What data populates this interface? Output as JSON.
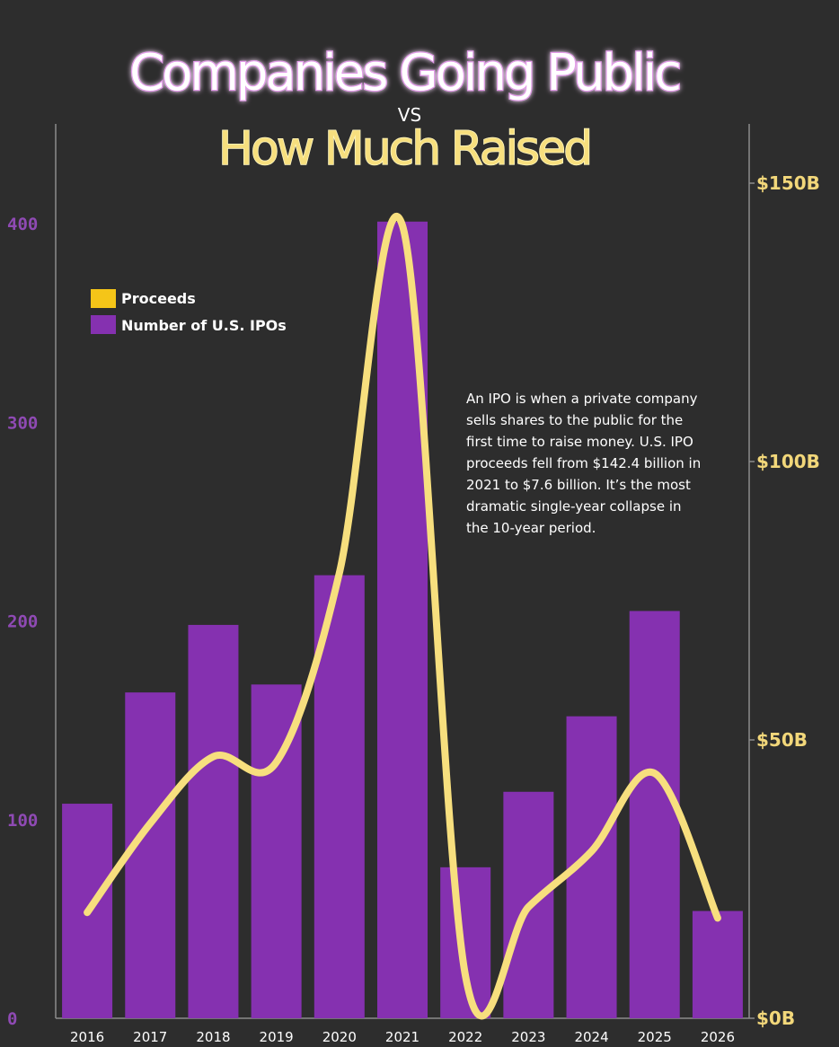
{
  "title": {
    "line1": "Companies Going Public",
    "vs": "VS",
    "line2": "How Much Raised"
  },
  "colors": {
    "background": "#2d2d2d",
    "bar": "#8531b0",
    "line": "#f7df7e",
    "title1": "#ffffff",
    "title1_glow": "#e8a8f0",
    "title2": "#f7df7e",
    "left_tick": "#8f4ab4",
    "right_tick": "#f2d77a",
    "axis": "#8c8c8c",
    "text": "#ffffff"
  },
  "legend": {
    "items": [
      {
        "label": "Proceeds",
        "color": "#f5c518"
      },
      {
        "label": "Number of U.S. IPOs",
        "color": "#8531b0"
      }
    ]
  },
  "annotation": {
    "lines": [
      "An IPO is when a private company",
      "sells shares to the public for the",
      "first time to raise money.  U.S. IPO",
      "proceeds fell from $142.4 billion in",
      "2021 to $7.6 billion. It’s the most",
      "dramatic single-year collapse in",
      "the 10-year period."
    ]
  },
  "chart_data": {
    "type": "bar",
    "categories": [
      "2016",
      "2017",
      "2018",
      "2019",
      "2020",
      "2021",
      "2022",
      "2023",
      "2024",
      "2025",
      "2026"
    ],
    "series": [
      {
        "name": "Number of U.S. IPOs",
        "type": "bar",
        "axis": "left",
        "values": [
          108,
          164,
          198,
          168,
          223,
          401,
          76,
          114,
          152,
          205,
          54
        ]
      },
      {
        "name": "Proceeds",
        "type": "line",
        "axis": "right",
        "unit": "$B",
        "values": [
          19,
          35,
          47,
          46,
          80,
          142.4,
          7.6,
          20,
          30,
          44,
          18
        ]
      }
    ],
    "y_left": {
      "ticks": [
        0,
        100,
        200,
        300,
        400
      ],
      "ylim": [
        0,
        400
      ]
    },
    "y_right": {
      "ticks": [
        "$0B",
        "$50B",
        "$100B",
        "$150B"
      ],
      "tick_values": [
        0,
        50,
        100,
        150
      ],
      "ylim": [
        0,
        150
      ]
    },
    "grid": false,
    "legend_position": "top-left"
  }
}
